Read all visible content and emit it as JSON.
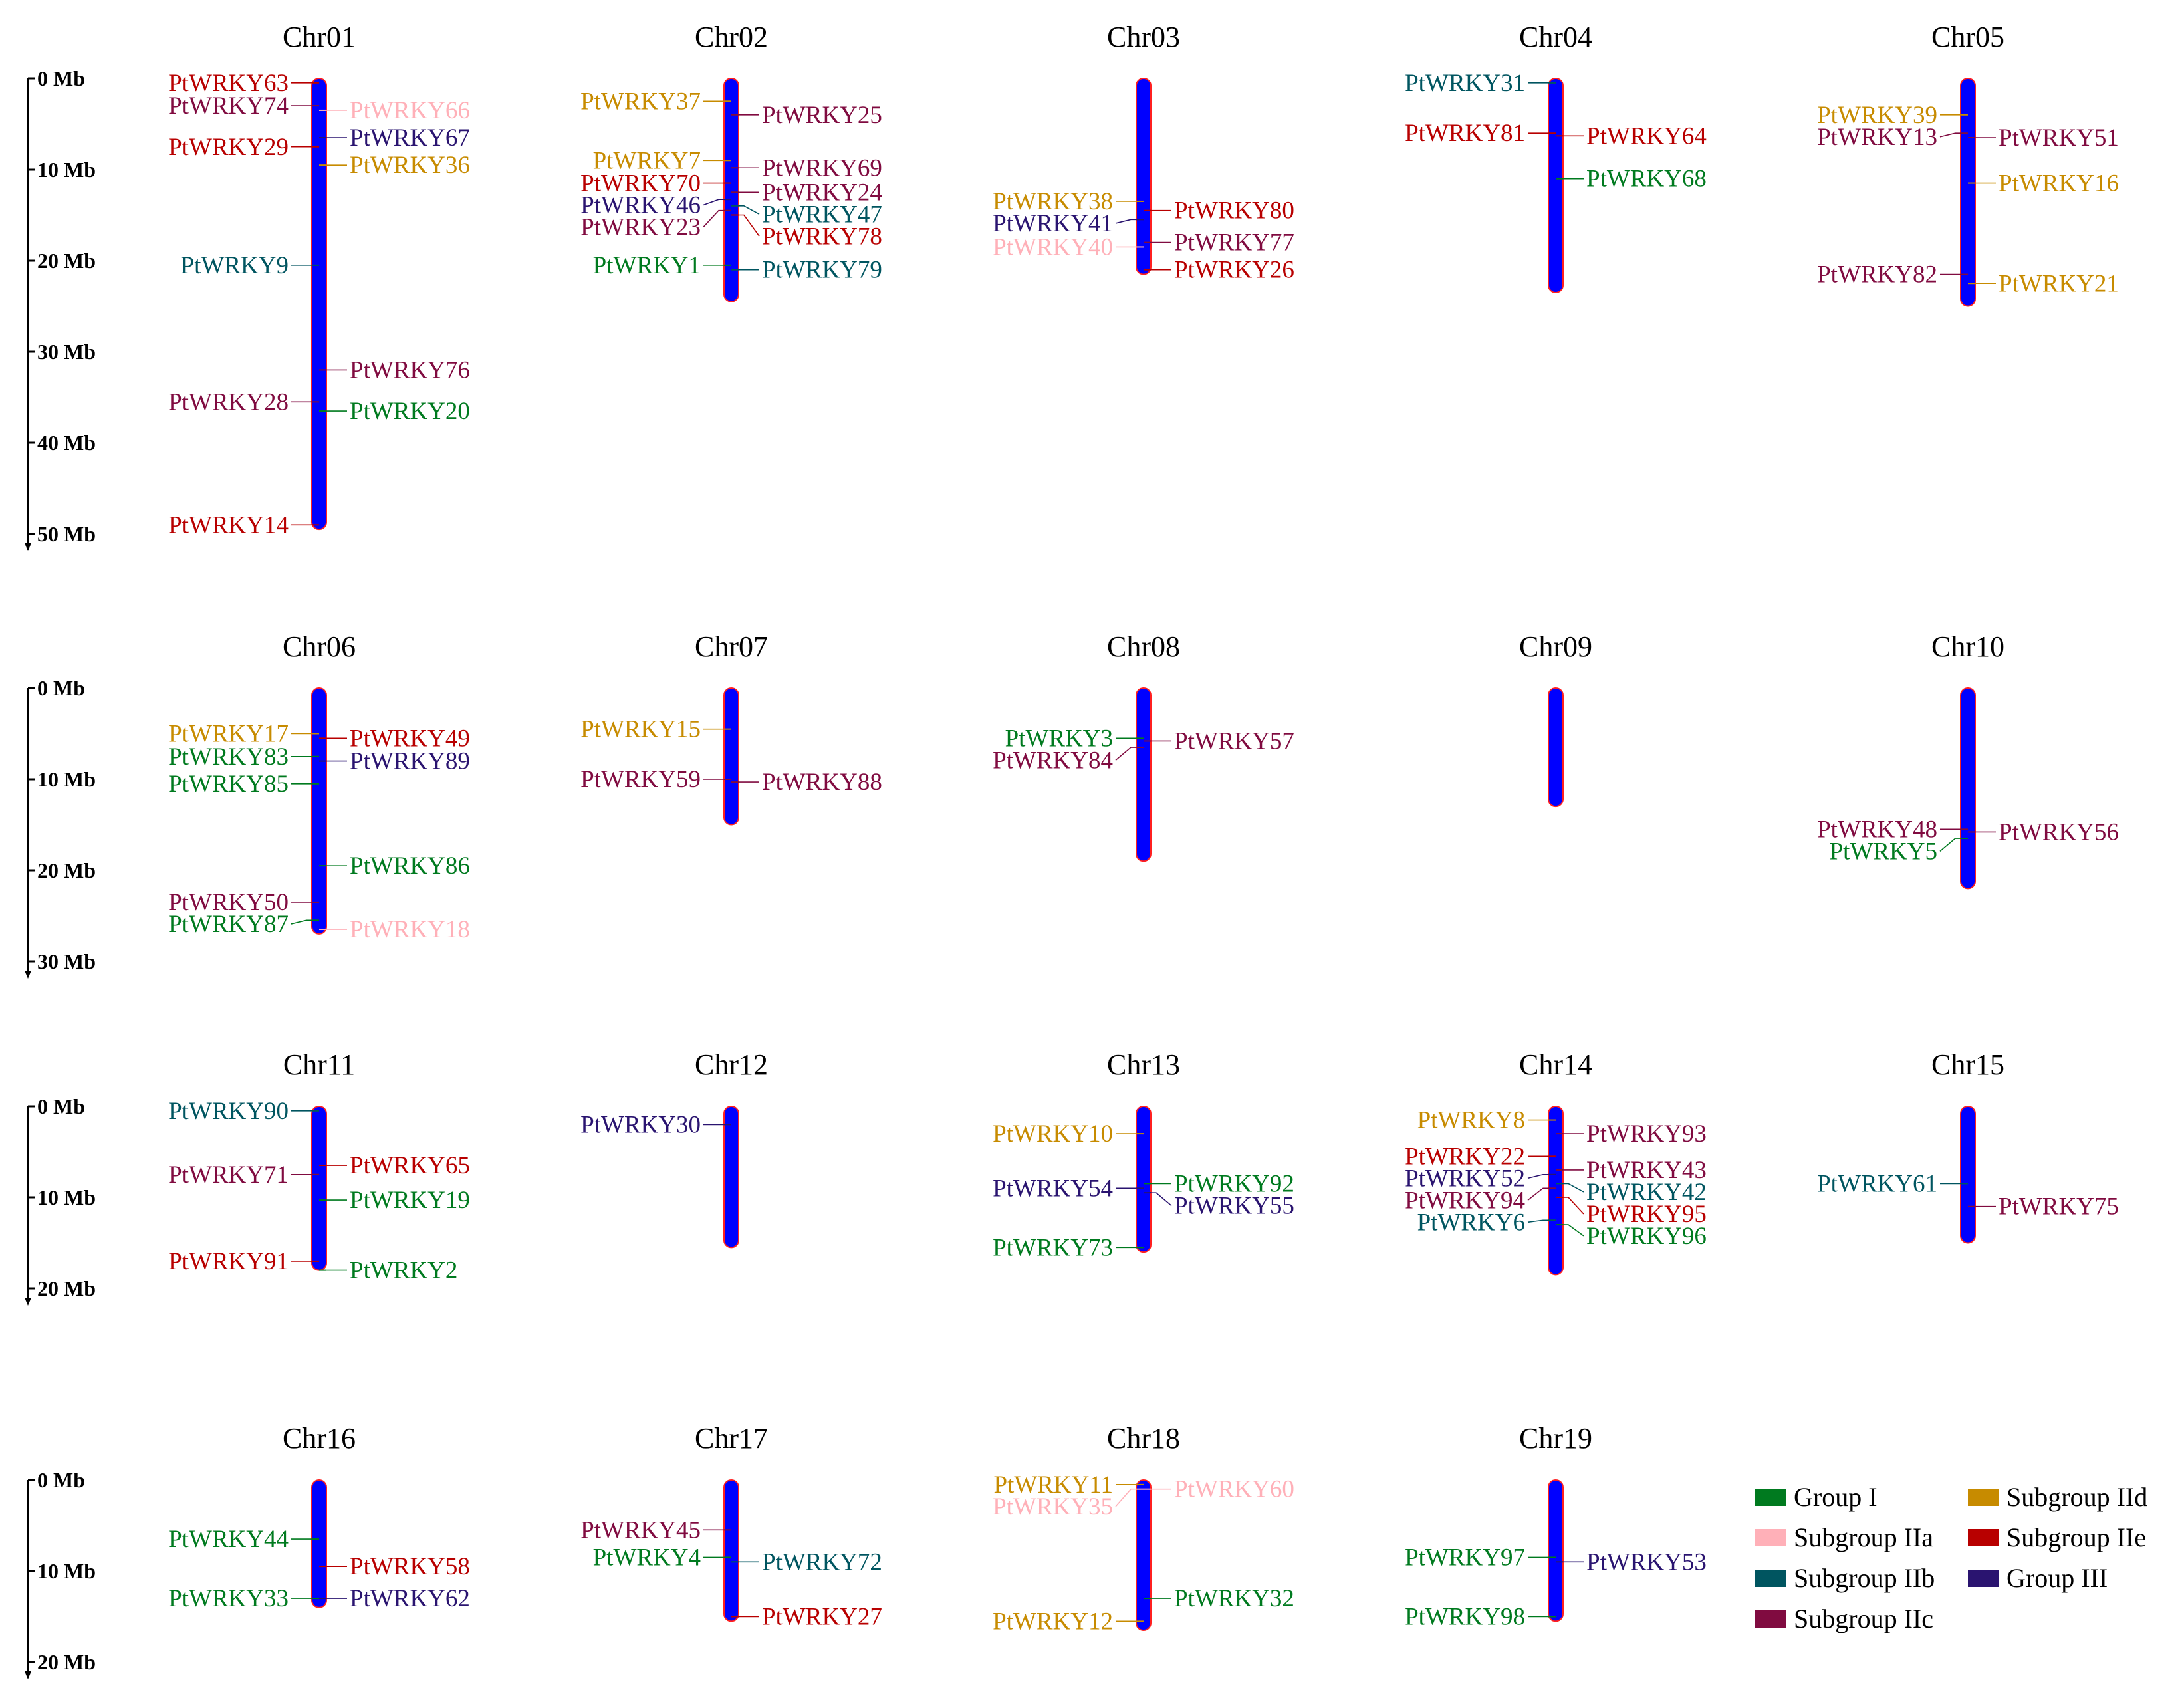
{
  "colors": {
    "group_I": "#007a1f",
    "subgroup_IIa": "#ffb0b8",
    "subgroup_IIb": "#005560",
    "subgroup_IIc": "#800b40",
    "subgroup_IId": "#c78b00",
    "subgroup_IIe": "#b80000",
    "group_III": "#2a1470",
    "chrom_fill": "#0000ff",
    "chrom_edge": "#ff2020"
  },
  "scale_bars": [
    {
      "ticks": [
        "0 Mb",
        "10 Mb",
        "20 Mb",
        "30 Mb",
        "40 Mb",
        "50 Mb"
      ]
    },
    {
      "ticks": [
        "0 Mb",
        "10 Mb",
        "20 Mb",
        "30 Mb"
      ]
    },
    {
      "ticks": [
        "0 Mb",
        "10 Mb",
        "20 Mb"
      ]
    },
    {
      "ticks": [
        "0 Mb",
        "10 Mb",
        "20 Mb"
      ]
    }
  ],
  "chromosomes": [
    {
      "name": "Chr01",
      "length_mb": 49.5,
      "genes": [
        {
          "name": "PtWRKY63",
          "pos_mb": 0.5,
          "side": "left",
          "group": "subgroup_IIe"
        },
        {
          "name": "PtWRKY74",
          "pos_mb": 3.0,
          "side": "left",
          "group": "subgroup_IIc"
        },
        {
          "name": "PtWRKY66",
          "pos_mb": 3.5,
          "side": "right",
          "group": "subgroup_IIa"
        },
        {
          "name": "PtWRKY67",
          "pos_mb": 6.5,
          "side": "right",
          "group": "group_III"
        },
        {
          "name": "PtWRKY29",
          "pos_mb": 7.5,
          "side": "left",
          "group": "subgroup_IIe"
        },
        {
          "name": "PtWRKY36",
          "pos_mb": 9.5,
          "side": "right",
          "group": "subgroup_IId"
        },
        {
          "name": "PtWRKY9",
          "pos_mb": 20.5,
          "side": "left",
          "group": "subgroup_IIb"
        },
        {
          "name": "PtWRKY76",
          "pos_mb": 32.0,
          "side": "right",
          "group": "subgroup_IIc"
        },
        {
          "name": "PtWRKY28",
          "pos_mb": 35.5,
          "side": "left",
          "group": "subgroup_IIc"
        },
        {
          "name": "PtWRKY20",
          "pos_mb": 36.5,
          "side": "right",
          "group": "group_I"
        },
        {
          "name": "PtWRKY14",
          "pos_mb": 49.0,
          "side": "left",
          "group": "subgroup_IIe"
        }
      ]
    },
    {
      "name": "Chr02",
      "length_mb": 24.5,
      "genes": [
        {
          "name": "PtWRKY37",
          "pos_mb": 2.5,
          "side": "left",
          "group": "subgroup_IId"
        },
        {
          "name": "PtWRKY25",
          "pos_mb": 4.0,
          "side": "right",
          "group": "subgroup_IIc"
        },
        {
          "name": "PtWRKY7",
          "pos_mb": 9.0,
          "side": "left",
          "group": "subgroup_IId"
        },
        {
          "name": "PtWRKY69",
          "pos_mb": 9.8,
          "side": "right",
          "group": "subgroup_IIc"
        },
        {
          "name": "PtWRKY70",
          "pos_mb": 11.5,
          "side": "left",
          "group": "subgroup_IIe"
        },
        {
          "name": "PtWRKY24",
          "pos_mb": 12.5,
          "side": "right",
          "group": "subgroup_IIc"
        },
        {
          "name": "PtWRKY46",
          "pos_mb": 13.3,
          "side": "left",
          "group": "group_III"
        },
        {
          "name": "PtWRKY47",
          "pos_mb": 14.0,
          "side": "right",
          "group": "subgroup_IIb"
        },
        {
          "name": "PtWRKY23",
          "pos_mb": 14.5,
          "side": "left",
          "group": "subgroup_IIc"
        },
        {
          "name": "PtWRKY78",
          "pos_mb": 15.0,
          "side": "right",
          "group": "subgroup_IIe"
        },
        {
          "name": "PtWRKY1",
          "pos_mb": 20.5,
          "side": "left",
          "group": "group_I"
        },
        {
          "name": "PtWRKY79",
          "pos_mb": 21.0,
          "side": "right",
          "group": "subgroup_IIb"
        }
      ]
    },
    {
      "name": "Chr03",
      "length_mb": 21.5,
      "genes": [
        {
          "name": "PtWRKY38",
          "pos_mb": 13.5,
          "side": "left",
          "group": "subgroup_IId"
        },
        {
          "name": "PtWRKY80",
          "pos_mb": 14.5,
          "side": "right",
          "group": "subgroup_IIe"
        },
        {
          "name": "PtWRKY41",
          "pos_mb": 15.5,
          "side": "left",
          "group": "group_III"
        },
        {
          "name": "PtWRKY77",
          "pos_mb": 18.0,
          "side": "right",
          "group": "subgroup_IIc"
        },
        {
          "name": "PtWRKY40",
          "pos_mb": 18.5,
          "side": "left",
          "group": "subgroup_IIa"
        },
        {
          "name": "PtWRKY26",
          "pos_mb": 21.0,
          "side": "right",
          "group": "subgroup_IIe"
        }
      ]
    },
    {
      "name": "Chr04",
      "length_mb": 23.5,
      "genes": [
        {
          "name": "PtWRKY31",
          "pos_mb": 0.5,
          "side": "left",
          "group": "subgroup_IIb"
        },
        {
          "name": "PtWRKY81",
          "pos_mb": 6.0,
          "side": "left",
          "group": "subgroup_IIe"
        },
        {
          "name": "PtWRKY64",
          "pos_mb": 6.3,
          "side": "right",
          "group": "subgroup_IIe"
        },
        {
          "name": "PtWRKY68",
          "pos_mb": 11.0,
          "side": "right",
          "group": "group_I"
        }
      ]
    },
    {
      "name": "Chr05",
      "length_mb": 25.0,
      "genes": [
        {
          "name": "PtWRKY39",
          "pos_mb": 4.0,
          "side": "left",
          "group": "subgroup_IId"
        },
        {
          "name": "PtWRKY13",
          "pos_mb": 6.0,
          "side": "left",
          "group": "subgroup_IIc"
        },
        {
          "name": "PtWRKY51",
          "pos_mb": 6.5,
          "side": "right",
          "group": "subgroup_IIc"
        },
        {
          "name": "PtWRKY16",
          "pos_mb": 11.5,
          "side": "right",
          "group": "subgroup_IId"
        },
        {
          "name": "PtWRKY82",
          "pos_mb": 21.5,
          "side": "left",
          "group": "subgroup_IIc"
        },
        {
          "name": "PtWRKY21",
          "pos_mb": 22.5,
          "side": "right",
          "group": "subgroup_IId"
        }
      ]
    },
    {
      "name": "Chr06",
      "length_mb": 27.0,
      "genes": [
        {
          "name": "PtWRKY17",
          "pos_mb": 5.0,
          "side": "left",
          "group": "subgroup_IId"
        },
        {
          "name": "PtWRKY49",
          "pos_mb": 5.5,
          "side": "right",
          "group": "subgroup_IIe"
        },
        {
          "name": "PtWRKY83",
          "pos_mb": 7.5,
          "side": "left",
          "group": "group_I"
        },
        {
          "name": "PtWRKY89",
          "pos_mb": 8.0,
          "side": "right",
          "group": "group_III"
        },
        {
          "name": "PtWRKY85",
          "pos_mb": 10.5,
          "side": "left",
          "group": "group_I"
        },
        {
          "name": "PtWRKY86",
          "pos_mb": 19.5,
          "side": "right",
          "group": "group_I"
        },
        {
          "name": "PtWRKY50",
          "pos_mb": 23.5,
          "side": "left",
          "group": "subgroup_IIc"
        },
        {
          "name": "PtWRKY87",
          "pos_mb": 25.5,
          "side": "left",
          "group": "group_I"
        },
        {
          "name": "PtWRKY18",
          "pos_mb": 26.5,
          "side": "right",
          "group": "subgroup_IIa"
        }
      ]
    },
    {
      "name": "Chr07",
      "length_mb": 15.0,
      "genes": [
        {
          "name": "PtWRKY15",
          "pos_mb": 4.5,
          "side": "left",
          "group": "subgroup_IId"
        },
        {
          "name": "PtWRKY59",
          "pos_mb": 10.0,
          "side": "left",
          "group": "subgroup_IIc"
        },
        {
          "name": "PtWRKY88",
          "pos_mb": 10.3,
          "side": "right",
          "group": "subgroup_IIc"
        }
      ]
    },
    {
      "name": "Chr08",
      "length_mb": 19.0,
      "genes": [
        {
          "name": "PtWRKY3",
          "pos_mb": 5.5,
          "side": "left",
          "group": "group_I"
        },
        {
          "name": "PtWRKY57",
          "pos_mb": 5.8,
          "side": "right",
          "group": "subgroup_IIc"
        },
        {
          "name": "PtWRKY84",
          "pos_mb": 6.5,
          "side": "left",
          "group": "subgroup_IIc"
        }
      ]
    },
    {
      "name": "Chr09",
      "length_mb": 13.0,
      "genes": []
    },
    {
      "name": "Chr10",
      "length_mb": 22.0,
      "genes": [
        {
          "name": "PtWRKY48",
          "pos_mb": 15.5,
          "side": "left",
          "group": "subgroup_IIc"
        },
        {
          "name": "PtWRKY56",
          "pos_mb": 15.8,
          "side": "right",
          "group": "subgroup_IIc"
        },
        {
          "name": "PtWRKY5",
          "pos_mb": 16.5,
          "side": "left",
          "group": "group_I"
        }
      ]
    },
    {
      "name": "Chr11",
      "length_mb": 18.0,
      "genes": [
        {
          "name": "PtWRKY90",
          "pos_mb": 0.5,
          "side": "left",
          "group": "subgroup_IIb"
        },
        {
          "name": "PtWRKY71",
          "pos_mb": 7.5,
          "side": "left",
          "group": "subgroup_IIc"
        },
        {
          "name": "PtWRKY65",
          "pos_mb": 6.5,
          "side": "right",
          "group": "subgroup_IIe"
        },
        {
          "name": "PtWRKY19",
          "pos_mb": 10.3,
          "side": "right",
          "group": "group_I"
        },
        {
          "name": "PtWRKY91",
          "pos_mb": 17.0,
          "side": "left",
          "group": "subgroup_IIe"
        },
        {
          "name": "PtWRKY2",
          "pos_mb": 18.0,
          "side": "right",
          "group": "group_I"
        }
      ]
    },
    {
      "name": "Chr12",
      "length_mb": 15.5,
      "genes": [
        {
          "name": "PtWRKY30",
          "pos_mb": 2.0,
          "side": "left",
          "group": "group_III"
        }
      ]
    },
    {
      "name": "Chr13",
      "length_mb": 16.0,
      "genes": [
        {
          "name": "PtWRKY10",
          "pos_mb": 3.0,
          "side": "left",
          "group": "subgroup_IId"
        },
        {
          "name": "PtWRKY54",
          "pos_mb": 9.0,
          "side": "left",
          "group": "group_III"
        },
        {
          "name": "PtWRKY92",
          "pos_mb": 8.5,
          "side": "right",
          "group": "group_I"
        },
        {
          "name": "PtWRKY55",
          "pos_mb": 9.5,
          "side": "right",
          "group": "group_III"
        },
        {
          "name": "PtWRKY73",
          "pos_mb": 15.5,
          "side": "left",
          "group": "group_I"
        }
      ]
    },
    {
      "name": "Chr14",
      "length_mb": 18.5,
      "genes": [
        {
          "name": "PtWRKY8",
          "pos_mb": 1.5,
          "side": "left",
          "group": "subgroup_IId"
        },
        {
          "name": "PtWRKY93",
          "pos_mb": 3.0,
          "side": "right",
          "group": "subgroup_IIc"
        },
        {
          "name": "PtWRKY22",
          "pos_mb": 5.5,
          "side": "left",
          "group": "subgroup_IIe"
        },
        {
          "name": "PtWRKY43",
          "pos_mb": 7.0,
          "side": "right",
          "group": "subgroup_IIc"
        },
        {
          "name": "PtWRKY52",
          "pos_mb": 7.5,
          "side": "left",
          "group": "group_III"
        },
        {
          "name": "PtWRKY42",
          "pos_mb": 8.5,
          "side": "right",
          "group": "subgroup_IIb"
        },
        {
          "name": "PtWRKY94",
          "pos_mb": 9.0,
          "side": "left",
          "group": "subgroup_IIc"
        },
        {
          "name": "PtWRKY95",
          "pos_mb": 10.0,
          "side": "right",
          "group": "subgroup_IIe"
        },
        {
          "name": "PtWRKY6",
          "pos_mb": 12.5,
          "side": "left",
          "group": "subgroup_IIb"
        },
        {
          "name": "PtWRKY96",
          "pos_mb": 13.0,
          "side": "right",
          "group": "group_I"
        }
      ]
    },
    {
      "name": "Chr15",
      "length_mb": 15.0,
      "genes": [
        {
          "name": "PtWRKY61",
          "pos_mb": 8.5,
          "side": "left",
          "group": "subgroup_IIb"
        },
        {
          "name": "PtWRKY75",
          "pos_mb": 11.0,
          "side": "right",
          "group": "subgroup_IIc"
        }
      ]
    },
    {
      "name": "Chr16",
      "length_mb": 14.0,
      "genes": [
        {
          "name": "PtWRKY44",
          "pos_mb": 6.5,
          "side": "left",
          "group": "group_I"
        },
        {
          "name": "PtWRKY58",
          "pos_mb": 9.5,
          "side": "right",
          "group": "subgroup_IIe"
        },
        {
          "name": "PtWRKY33",
          "pos_mb": 13.0,
          "side": "left",
          "group": "group_I"
        },
        {
          "name": "PtWRKY62",
          "pos_mb": 13.0,
          "side": "right",
          "group": "group_III"
        }
      ]
    },
    {
      "name": "Chr17",
      "length_mb": 15.5,
      "genes": [
        {
          "name": "PtWRKY45",
          "pos_mb": 5.5,
          "side": "left",
          "group": "subgroup_IIc"
        },
        {
          "name": "PtWRKY4",
          "pos_mb": 8.5,
          "side": "left",
          "group": "group_I"
        },
        {
          "name": "PtWRKY72",
          "pos_mb": 9.0,
          "side": "right",
          "group": "subgroup_IIb"
        },
        {
          "name": "PtWRKY27",
          "pos_mb": 15.0,
          "side": "right",
          "group": "subgroup_IIe"
        }
      ]
    },
    {
      "name": "Chr18",
      "length_mb": 16.5,
      "genes": [
        {
          "name": "PtWRKY11",
          "pos_mb": 0.5,
          "side": "left",
          "group": "subgroup_IId"
        },
        {
          "name": "PtWRKY35",
          "pos_mb": 1.0,
          "side": "left",
          "group": "subgroup_IIa"
        },
        {
          "name": "PtWRKY60",
          "pos_mb": 1.0,
          "side": "right",
          "group": "subgroup_IIa"
        },
        {
          "name": "PtWRKY32",
          "pos_mb": 13.0,
          "side": "right",
          "group": "group_I"
        },
        {
          "name": "PtWRKY12",
          "pos_mb": 15.5,
          "side": "left",
          "group": "subgroup_IId"
        }
      ]
    },
    {
      "name": "Chr19",
      "length_mb": 15.5,
      "genes": [
        {
          "name": "PtWRKY97",
          "pos_mb": 8.5,
          "side": "left",
          "group": "group_I"
        },
        {
          "name": "PtWRKY53",
          "pos_mb": 9.0,
          "side": "right",
          "group": "group_III"
        },
        {
          "name": "PtWRKY98",
          "pos_mb": 15.0,
          "side": "left",
          "group": "group_I"
        }
      ]
    }
  ],
  "legend": [
    {
      "label": "Group I",
      "group": "group_I"
    },
    {
      "label": "Subgroup IIa",
      "group": "subgroup_IIa"
    },
    {
      "label": "Subgroup IIb",
      "group": "subgroup_IIb"
    },
    {
      "label": "Subgroup IIc",
      "group": "subgroup_IIc"
    },
    {
      "label": "Subgroup IId",
      "group": "subgroup_IId"
    },
    {
      "label": "Subgroup IIe",
      "group": "subgroup_IIe"
    },
    {
      "label": "Group III",
      "group": "group_III"
    }
  ]
}
